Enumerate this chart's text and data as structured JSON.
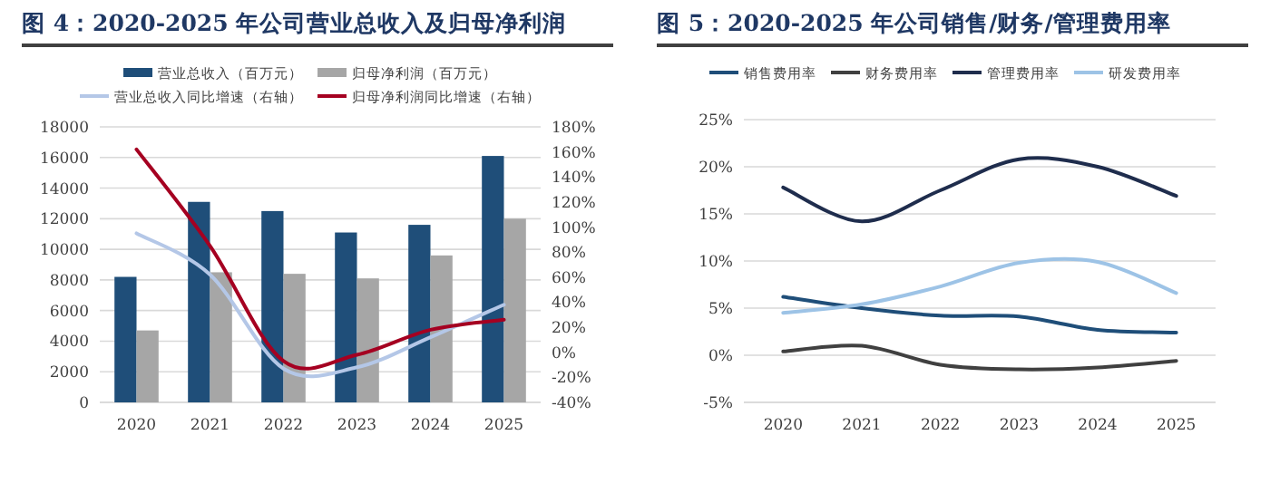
{
  "chart_data": [
    {
      "type": "bar",
      "title": "图 4：2020-2025 年公司营业总收入及归母净利润",
      "categories": [
        "2020",
        "2021",
        "2022",
        "2023",
        "2024",
        "2025"
      ],
      "series": [
        {
          "name": "营业总收入（百万元）",
          "color": "#1f4e79",
          "values": [
            8200,
            13100,
            12500,
            11100,
            11600,
            16100
          ]
        },
        {
          "name": "归母净利润（百万元）",
          "color": "#a6a6a6",
          "values": [
            4700,
            8500,
            8400,
            8100,
            9600,
            12000
          ]
        },
        {
          "name": "营业总收入同比增速（右轴）",
          "type": "line",
          "axis": "y2",
          "color": "#b4c7e7",
          "values": [
            95,
            62,
            -13,
            -12,
            12,
            38
          ]
        },
        {
          "name": "归母净利润同比增速（右轴）",
          "type": "line",
          "axis": "y2",
          "color": "#a50021",
          "values": [
            162,
            85,
            -7,
            -2,
            18,
            26
          ]
        }
      ],
      "ylim": [
        0,
        18000
      ],
      "yticks": [
        0,
        2000,
        4000,
        6000,
        8000,
        10000,
        12000,
        14000,
        16000,
        18000
      ],
      "y2lim": [
        -40,
        180
      ],
      "y2ticks": [
        {
          "value": -40,
          "label": "-40%"
        },
        {
          "value": -20,
          "label": "-20%"
        },
        {
          "value": 0,
          "label": "0%"
        },
        {
          "value": 20,
          "label": "20%"
        },
        {
          "value": 40,
          "label": "40%"
        },
        {
          "value": 60,
          "label": "60%"
        },
        {
          "value": 80,
          "label": "80%"
        },
        {
          "value": 100,
          "label": "100%"
        },
        {
          "value": 120,
          "label": "120%"
        },
        {
          "value": 140,
          "label": "140%"
        },
        {
          "value": 160,
          "label": "160%"
        },
        {
          "value": 180,
          "label": "180%"
        }
      ],
      "grid": "y",
      "legend": "top"
    },
    {
      "type": "line",
      "title": "图 5：2020-2025 年公司销售/财务/管理费用率",
      "categories": [
        "2020",
        "2021",
        "2022",
        "2023",
        "2024",
        "2025"
      ],
      "series": [
        {
          "name": "销售费用率",
          "color": "#1f4e79",
          "values": [
            6.2,
            5.0,
            4.2,
            4.1,
            2.7,
            2.4
          ]
        },
        {
          "name": "财务费用率",
          "color": "#404040",
          "values": [
            0.4,
            1.0,
            -1.0,
            -1.5,
            -1.3,
            -0.6
          ]
        },
        {
          "name": "管理费用率",
          "color": "#1f2d4d",
          "values": [
            17.8,
            14.2,
            17.5,
            20.8,
            20.0,
            16.9
          ]
        },
        {
          "name": "研发费用率",
          "color": "#9dc3e6",
          "values": [
            4.5,
            5.4,
            7.3,
            9.8,
            9.9,
            6.6
          ]
        }
      ],
      "ylim": [
        -5,
        25
      ],
      "yticks": [
        {
          "value": -5,
          "label": "-5%"
        },
        {
          "value": 0,
          "label": "0%"
        },
        {
          "value": 5,
          "label": "5%"
        },
        {
          "value": 10,
          "label": "10%"
        },
        {
          "value": 15,
          "label": "15%"
        },
        {
          "value": 20,
          "label": "20%"
        },
        {
          "value": 25,
          "label": "25%"
        }
      ],
      "grid": "y",
      "legend": "top"
    }
  ]
}
